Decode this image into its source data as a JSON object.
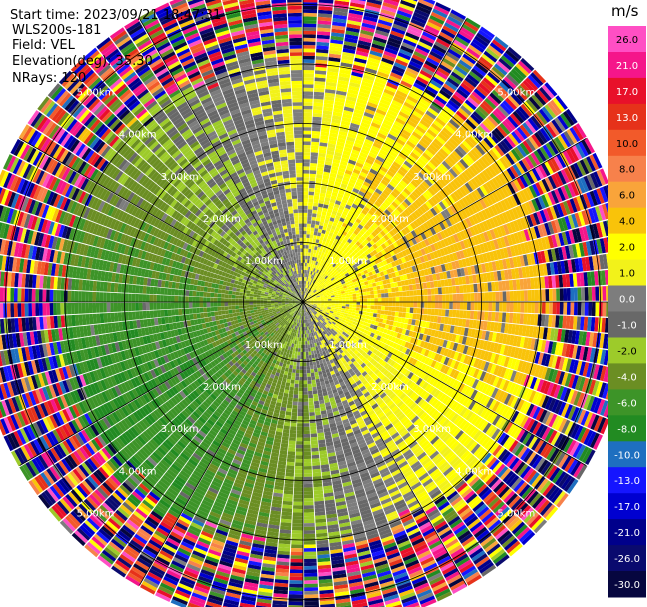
{
  "info": {
    "start_time": "Start time: 2023/09/21 18:47:31",
    "instrument": "WLS200s-181",
    "field": "Field: VEL",
    "elevation": "Elevation(deg): 35.30",
    "nrays": "NRays: 120"
  },
  "chart_data": {
    "type": "heatmap",
    "title": "",
    "field": "VEL",
    "units": "m/s",
    "n_rays": 120,
    "elevation_deg": 35.3,
    "range_rings_km": [
      1.0,
      2.0,
      3.0,
      4.0,
      5.0
    ],
    "range_ring_labels": [
      "1.00km",
      "2.00km",
      "3.00km",
      "4.00km",
      "5.00km"
    ],
    "colorbar": {
      "unit_label": "m/s",
      "ticks": [
        "26.0",
        "21.0",
        "17.0",
        "13.0",
        "10.0",
        "8.0",
        "6.0",
        "4.0",
        "2.0",
        "1.0",
        "0.0",
        "-1.0",
        "-2.0",
        "-4.0",
        "-6.0",
        "-8.0",
        "-10.0",
        "-13.0",
        "-17.0",
        "-21.0",
        "-26.0",
        "-30.0"
      ],
      "colors": [
        "#ff4fc4",
        "#f5168a",
        "#e8102a",
        "#e6321a",
        "#f25a2a",
        "#f7814b",
        "#f9a43a",
        "#f9c30a",
        "#ffff00",
        "#f2f21a",
        "#7d7d7d",
        "#686868",
        "#9dcb2a",
        "#6b8e23",
        "#3d9428",
        "#228b22",
        "#1e6fc0",
        "#1515ff",
        "#0000d0",
        "#00008b",
        "#0a0a6e",
        "#06063f"
      ]
    },
    "approx_velocity_by_azimuth": {
      "azimuth_deg": [
        0,
        30,
        60,
        90,
        120,
        150,
        180,
        210,
        240,
        270,
        300,
        330
      ],
      "velocity_ms": [
        1.5,
        4.0,
        5.0,
        6.0,
        3.0,
        1.5,
        -2.0,
        -5.0,
        -6.0,
        -5.0,
        -3.0,
        -1.0
      ]
    },
    "valid_range_km": 4.1,
    "max_range_km": 5.5
  }
}
